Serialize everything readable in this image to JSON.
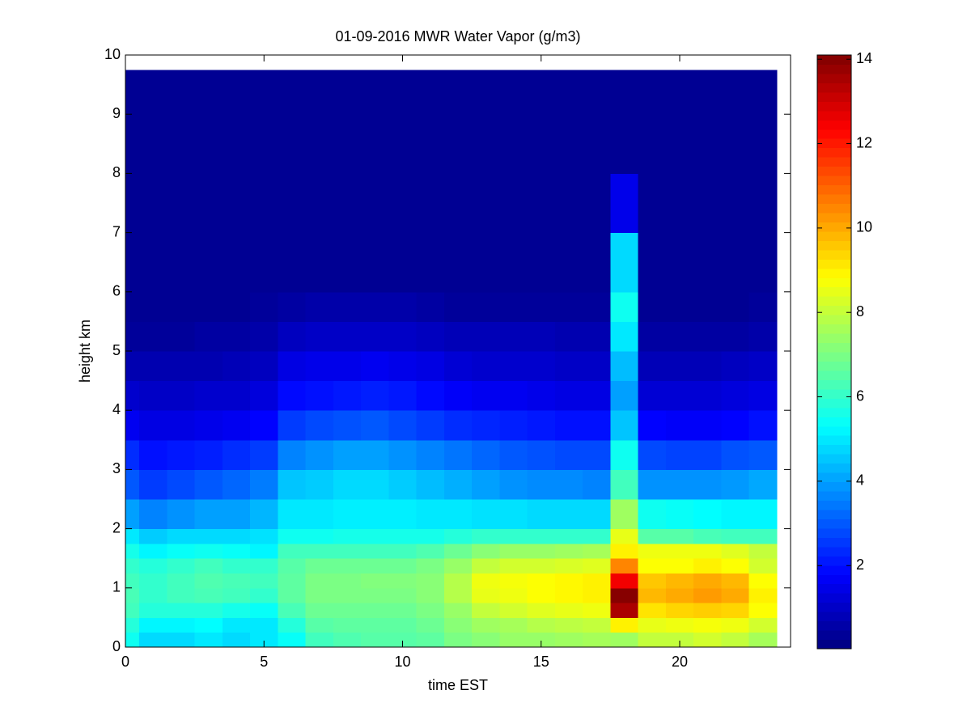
{
  "chart_data": {
    "type": "heatmap",
    "title": "01-09-2016 MWR Water Vapor (g/m3)",
    "xlabel": "time EST",
    "ylabel": "height km",
    "x": [
      0,
      1,
      2,
      3,
      4,
      5,
      6,
      7,
      8,
      9,
      10,
      11,
      12,
      13,
      14,
      15,
      16,
      17,
      18,
      19,
      20,
      21,
      22,
      23
    ],
    "y_bins": [
      0,
      0.25,
      0.5,
      0.75,
      1,
      1.25,
      1.5,
      1.75,
      2,
      2.5,
      3,
      3.5,
      4,
      4.5,
      5,
      5.5,
      6,
      7,
      8,
      9,
      9.75
    ],
    "values": [
      [
        5.5,
        5.8,
        6.2,
        6.3,
        6.2,
        6,
        5.6,
        5,
        4,
        3,
        2.4,
        1.6,
        1.1,
        0.7,
        0.4,
        0.3,
        0.3,
        0.3,
        0.3,
        0.3
      ],
      [
        4.8,
        5.2,
        5.8,
        6,
        6,
        5.8,
        5.2,
        4.6,
        3.6,
        2.6,
        2,
        1.4,
        1,
        0.7,
        0.4,
        0.3,
        0.3,
        0.3,
        0.3,
        0.3
      ],
      [
        4.8,
        5.2,
        5.8,
        6.2,
        6.2,
        6,
        5.4,
        4.8,
        3.8,
        2.8,
        2.1,
        1.4,
        1,
        0.7,
        0.4,
        0.3,
        0.3,
        0.3,
        0.3,
        0.3
      ],
      [
        5,
        5.3,
        5.8,
        6.3,
        6.4,
        6.2,
        5.5,
        4.8,
        4,
        3,
        2.2,
        1.5,
        1.1,
        0.7,
        0.5,
        0.3,
        0.3,
        0.3,
        0.3,
        0.3
      ],
      [
        4.8,
        5,
        5.6,
        6.2,
        6.3,
        6,
        5.4,
        4.8,
        4,
        3.2,
        2.4,
        1.6,
        1.1,
        0.8,
        0.5,
        0.3,
        0.3,
        0.3,
        0.3,
        0.3
      ],
      [
        5,
        5,
        5.4,
        6,
        6.2,
        6,
        5.2,
        4.9,
        4.3,
        3.5,
        2.6,
        1.8,
        1.3,
        0.9,
        0.6,
        0.4,
        0.3,
        0.3,
        0.3,
        0.3
      ],
      [
        5.4,
        5.8,
        6.3,
        6.6,
        6.6,
        6.5,
        6.2,
        5.5,
        5,
        4.5,
        3.6,
        2.6,
        1.9,
        1.4,
        0.9,
        0.5,
        0.3,
        0.3,
        0.3,
        0.3
      ],
      [
        6.2,
        6.5,
        6.8,
        7,
        7,
        6.8,
        6.2,
        5.5,
        5,
        4.6,
        3.8,
        2.8,
        2,
        1.5,
        1,
        0.6,
        0.3,
        0.3,
        0.3,
        0.3
      ],
      [
        6.4,
        6.6,
        6.8,
        7,
        7,
        6.8,
        6.2,
        5.6,
        5.1,
        4.8,
        4,
        2.9,
        2.1,
        1.5,
        1,
        0.6,
        0.3,
        0.3,
        0.3,
        0.3
      ],
      [
        6.5,
        6.6,
        6.8,
        7,
        7.1,
        6.8,
        6.2,
        5.6,
        5.1,
        4.8,
        4,
        3,
        2.2,
        1.6,
        1,
        0.6,
        0.3,
        0.3,
        0.3,
        0.3
      ],
      [
        6.5,
        6.6,
        6.8,
        7,
        7.1,
        6.8,
        6.2,
        5.6,
        5.1,
        4.6,
        3.8,
        2.8,
        2.1,
        1.5,
        1,
        0.6,
        0.3,
        0.3,
        0.3,
        0.3
      ],
      [
        6.6,
        6.8,
        7,
        7.2,
        7.2,
        7,
        6.4,
        5.6,
        5,
        4.4,
        3.6,
        2.6,
        1.9,
        1.4,
        0.9,
        0.5,
        0.3,
        0.3,
        0.3,
        0.3
      ],
      [
        7,
        7.2,
        7.4,
        7.8,
        7.8,
        7.4,
        6.8,
        5.8,
        5,
        4.2,
        3.4,
        2.4,
        1.7,
        1.2,
        0.8,
        0.4,
        0.3,
        0.3,
        0.3,
        0.3
      ],
      [
        7.2,
        7.5,
        8,
        8.5,
        8.6,
        8,
        7.2,
        6,
        4.9,
        4,
        3.2,
        2.3,
        1.6,
        1.1,
        0.8,
        0.4,
        0.3,
        0.3,
        0.3,
        0.3
      ],
      [
        7.4,
        7.6,
        8.2,
        8.6,
        8.7,
        8.2,
        7.4,
        6,
        4.9,
        3.8,
        3,
        2.2,
        1.6,
        1.1,
        0.8,
        0.4,
        0.3,
        0.3,
        0.3,
        0.3
      ],
      [
        7.4,
        7.8,
        8.4,
        8.8,
        8.8,
        8.2,
        7.4,
        6,
        4.8,
        3.7,
        2.9,
        2.1,
        1.5,
        1.1,
        0.8,
        0.4,
        0.3,
        0.3,
        0.3,
        0.3
      ],
      [
        7.5,
        7.9,
        8.5,
        8.9,
        8.9,
        8.3,
        7.5,
        6,
        4.8,
        3.7,
        2.8,
        2,
        1.4,
        1,
        0.7,
        0.4,
        0.3,
        0.3,
        0.3,
        0.3
      ],
      [
        7.6,
        8,
        8.6,
        9,
        9,
        8.4,
        7.6,
        6,
        4.8,
        3.6,
        2.8,
        2,
        1.4,
        1,
        0.7,
        0.4,
        0.3,
        0.3,
        0.3,
        0.3
      ],
      [
        7.5,
        9,
        13.5,
        14,
        12.5,
        10.5,
        9,
        8.5,
        7.5,
        6.2,
        5.5,
        4.5,
        4,
        4.4,
        5,
        5.5,
        4.8,
        1.5,
        0.3,
        0.3
      ],
      [
        8,
        8.5,
        9.2,
        9.8,
        9.6,
        8.8,
        8.6,
        6.5,
        5.5,
        3.8,
        2.8,
        1.8,
        1.2,
        0.8,
        0.5,
        0.3,
        0.3,
        0.3,
        0.3,
        0.3
      ],
      [
        8,
        8.6,
        9.4,
        10,
        9.8,
        8.8,
        8.6,
        6.5,
        5.4,
        3.8,
        2.7,
        1.7,
        1.2,
        0.8,
        0.5,
        0.3,
        0.3,
        0.3,
        0.3,
        0.3
      ],
      [
        8.2,
        8.7,
        9.5,
        10.2,
        10,
        9,
        8.6,
        6.3,
        5.3,
        3.8,
        2.7,
        1.7,
        1.2,
        0.8,
        0.5,
        0.3,
        0.3,
        0.3,
        0.3,
        0.3
      ],
      [
        8,
        8.6,
        9.4,
        10,
        9.8,
        8.8,
        8.4,
        6.2,
        5.2,
        3.9,
        2.9,
        1.8,
        1.3,
        0.9,
        0.5,
        0.3,
        0.3,
        0.3,
        0.3,
        0.3
      ],
      [
        7.6,
        8.2,
        8.8,
        9,
        8.8,
        8.2,
        8,
        6.2,
        5.2,
        4.1,
        3,
        2,
        1.4,
        1,
        0.6,
        0.4,
        0.3,
        0.3,
        0.3,
        0.3
      ]
    ],
    "xlim": [
      0,
      24
    ],
    "xticks": [
      0,
      5,
      10,
      15,
      20
    ],
    "ylim": [
      0,
      10
    ],
    "yticks": [
      0,
      1,
      2,
      3,
      4,
      5,
      6,
      7,
      8,
      9,
      10
    ],
    "colormap": "jet",
    "clim": [
      0.03,
      14.1
    ],
    "colorbar_ticks": [
      2,
      4,
      6,
      8,
      10,
      12,
      14
    ]
  }
}
